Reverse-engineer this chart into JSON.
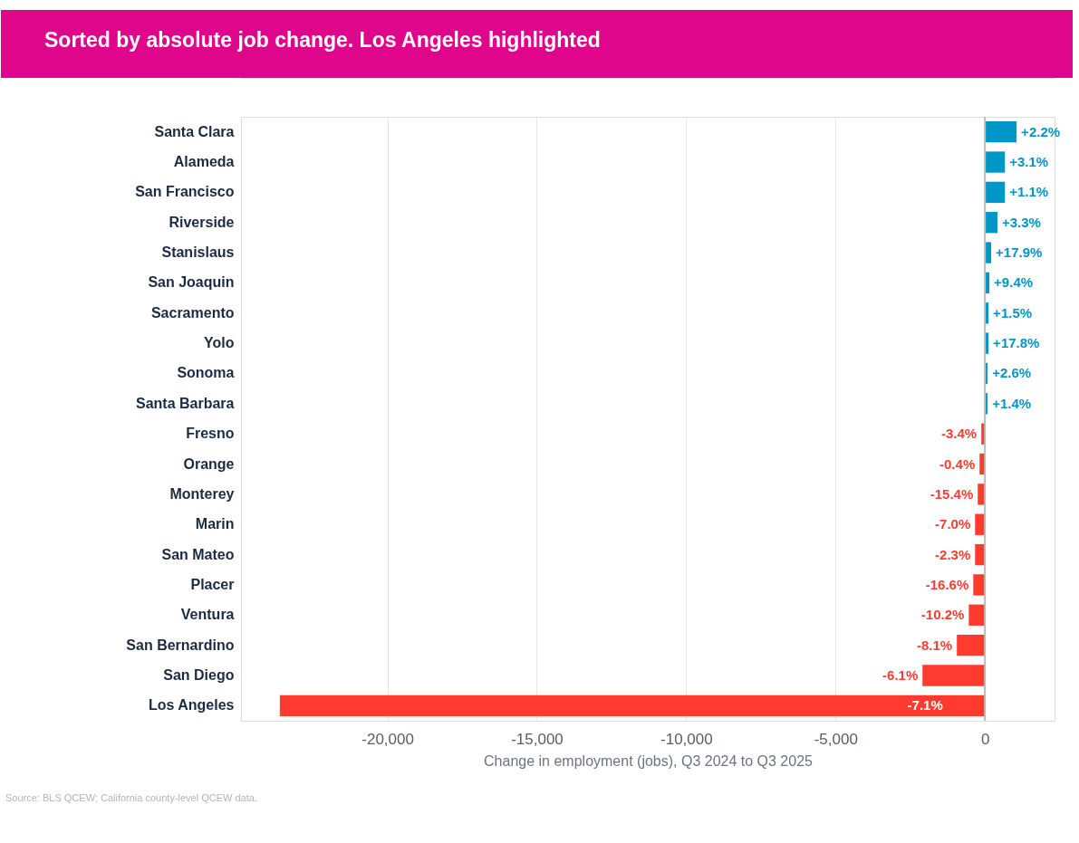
{
  "chart_data": {
    "type": "bar",
    "orientation": "horizontal",
    "title": "Sorted by absolute job change. Los Angeles highlighted",
    "categories": [
      "Santa Clara",
      "Alameda",
      "San Francisco",
      "Riverside",
      "Stanislaus",
      "San Joaquin",
      "Sacramento",
      "Yolo",
      "Sonoma",
      "Santa Barbara",
      "Fresno",
      "Orange",
      "Monterey",
      "Marin",
      "San Mateo",
      "Placer",
      "Ventura",
      "San Bernardino",
      "San Diego",
      "Los Angeles"
    ],
    "values": [
      1060,
      670,
      670,
      420,
      210,
      150,
      120,
      120,
      90,
      90,
      -120,
      -180,
      -240,
      -330,
      -330,
      -390,
      -540,
      -940,
      -2090,
      -23600
    ],
    "colors": [
      "#0096c7",
      "#0096c7",
      "#0096c7",
      "#0096c7",
      "#0096c7",
      "#0096c7",
      "#0096c7",
      "#0096c7",
      "#0096c7",
      "#0096c7",
      "#ff3b30",
      "#ff3b30",
      "#ff3b30",
      "#ff3b30",
      "#ff3b30",
      "#ff3b30",
      "#ff3b30",
      "#ff3b30",
      "#ff3b30",
      "#ff3b30"
    ],
    "xlabel": "Change in employment (jobs), Q3 2024 to Q3 2025",
    "xlim": [
      -24900,
      2330
    ],
    "xticks": [
      {
        "value": -20000,
        "label": "-20,000"
      },
      {
        "value": -15000,
        "label": "-15,000"
      },
      {
        "value": -10000,
        "label": "-10,000"
      },
      {
        "value": -5000,
        "label": "-5,000"
      },
      0
    ],
    "grid": "x",
    "ref_lines": [
      {
        "axis": "x",
        "value": 0,
        "color": "#bbbbbb"
      }
    ],
    "annotations": [
      {
        "text": "+2.2%",
        "x": 1060,
        "y": "Santa Clara"
      },
      {
        "text": "+3.1%",
        "x": 670,
        "y": "Alameda"
      },
      {
        "text": "+1.1%",
        "x": 670,
        "y": "San Francisco"
      },
      {
        "text": "+3.3%",
        "x": 420,
        "y": "Riverside"
      },
      {
        "text": "+17.9%",
        "x": 210,
        "y": "Stanislaus"
      },
      {
        "text": "+9.4%",
        "x": 150,
        "y": "San Joaquin"
      },
      {
        "text": "+1.5%",
        "x": 120,
        "y": "Sacramento"
      },
      {
        "text": "+17.8%",
        "x": 120,
        "y": "Yolo"
      },
      {
        "text": "+2.6%",
        "x": 90,
        "y": "Sonoma"
      },
      {
        "text": "+1.4%",
        "x": 90,
        "y": "Santa Barbara"
      },
      {
        "text": "-3.4%",
        "x": -120,
        "y": "Fresno"
      },
      {
        "text": "-0.4%",
        "x": -180,
        "y": "Orange"
      },
      {
        "text": "-15.4%",
        "x": -240,
        "y": "Monterey"
      },
      {
        "text": "-7.0%",
        "x": -330,
        "y": "Marin"
      },
      {
        "text": "-2.3%",
        "x": -330,
        "y": "San Mateo"
      },
      {
        "text": "-16.6%",
        "x": -390,
        "y": "Placer"
      },
      {
        "text": "-10.2%",
        "x": -540,
        "y": "Ventura"
      },
      {
        "text": "-8.1%",
        "x": -940,
        "y": "San Bernardino"
      },
      {
        "text": "-6.1%",
        "x": -2090,
        "y": "San Diego"
      },
      {
        "text": "-7.1%",
        "x": -2000,
        "y": "Los Angeles"
      },
      "Source: BLS QCEW; California county-level QCEW data."
    ]
  }
}
